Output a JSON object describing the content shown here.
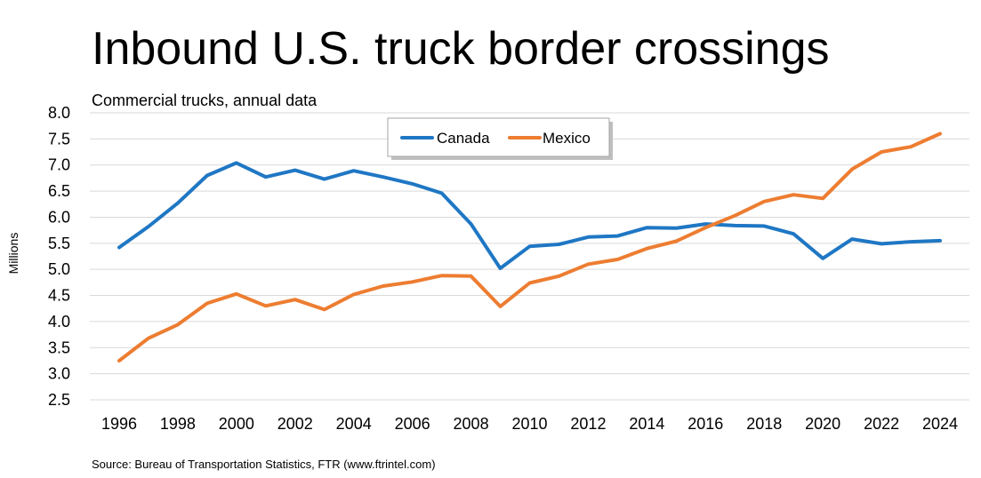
{
  "chart_data": {
    "type": "line",
    "title": "Inbound U.S. truck border crossings",
    "subtitle": "Commercial trucks, annual data",
    "xlabel": "",
    "ylabel": "Millions",
    "ylim": [
      2.5,
      8.0
    ],
    "y_ticks": [
      "2.5",
      "3.0",
      "3.5",
      "4.0",
      "4.5",
      "5.0",
      "5.5",
      "6.0",
      "6.5",
      "7.0",
      "7.5",
      "8.0"
    ],
    "x": [
      1996,
      1997,
      1998,
      1999,
      2000,
      2001,
      2002,
      2003,
      2004,
      2005,
      2006,
      2007,
      2008,
      2009,
      2010,
      2011,
      2012,
      2013,
      2014,
      2015,
      2016,
      2017,
      2018,
      2019,
      2020,
      2021,
      2022,
      2023,
      2024
    ],
    "x_ticks": [
      "1996",
      "1998",
      "2000",
      "2002",
      "2004",
      "2006",
      "2008",
      "2010",
      "2012",
      "2014",
      "2016",
      "2018",
      "2020",
      "2022",
      "2024"
    ],
    "grid": true,
    "legend_position": "top-center",
    "series": [
      {
        "name": "Canada",
        "color": "#1f77c4",
        "values": [
          5.42,
          5.82,
          6.27,
          6.8,
          7.04,
          6.77,
          6.9,
          6.73,
          6.89,
          6.77,
          6.64,
          6.46,
          5.87,
          5.02,
          5.44,
          5.48,
          5.62,
          5.64,
          5.8,
          5.79,
          5.87,
          5.84,
          5.83,
          5.68,
          5.21,
          5.58,
          5.49,
          5.53,
          5.55
        ]
      },
      {
        "name": "Mexico",
        "color": "#ed7d31",
        "values": [
          3.25,
          3.68,
          3.94,
          4.35,
          4.53,
          4.3,
          4.42,
          4.23,
          4.52,
          4.68,
          4.76,
          4.88,
          4.87,
          4.29,
          4.74,
          4.87,
          5.1,
          5.19,
          5.4,
          5.54,
          5.8,
          6.03,
          6.3,
          6.43,
          6.36,
          6.92,
          7.25,
          7.35,
          7.6
        ]
      }
    ],
    "source": "Source: Bureau of Transportation Statistics, FTR (www.ftrintel.com)"
  }
}
